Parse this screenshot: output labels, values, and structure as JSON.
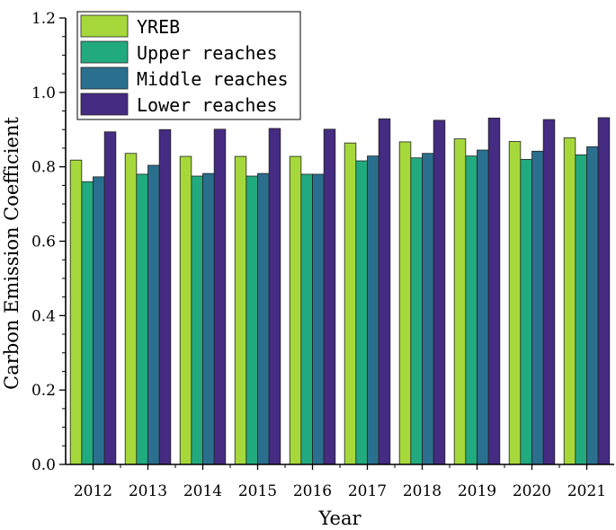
{
  "chart_data": {
    "type": "bar",
    "categories": [
      "2012",
      "2013",
      "2014",
      "2015",
      "2016",
      "2017",
      "2018",
      "2019",
      "2020",
      "2021"
    ],
    "series": [
      {
        "name": "YREB",
        "color": "#a6d83c",
        "values": [
          0.818,
          0.836,
          0.828,
          0.828,
          0.828,
          0.864,
          0.867,
          0.875,
          0.868,
          0.878
        ]
      },
      {
        "name": "Upper reaches",
        "color": "#22aa7f",
        "values": [
          0.76,
          0.78,
          0.775,
          0.775,
          0.78,
          0.816,
          0.824,
          0.829,
          0.82,
          0.832
        ]
      },
      {
        "name": "Middle reaches",
        "color": "#2b6f8e",
        "values": [
          0.773,
          0.804,
          0.782,
          0.782,
          0.78,
          0.829,
          0.836,
          0.845,
          0.842,
          0.854
        ]
      },
      {
        "name": "Lower reaches",
        "color": "#452b82",
        "values": [
          0.894,
          0.9,
          0.901,
          0.903,
          0.901,
          0.929,
          0.925,
          0.931,
          0.927,
          0.932
        ]
      }
    ],
    "xlabel": "Year",
    "ylabel": "Carbon Emission Coefficient",
    "ylim": [
      0,
      1.2
    ],
    "yticks": [
      "0.0",
      "0.2",
      "0.4",
      "0.6",
      "0.8",
      "1.0",
      "1.2"
    ],
    "grid": false,
    "legend_position": "top-left"
  }
}
